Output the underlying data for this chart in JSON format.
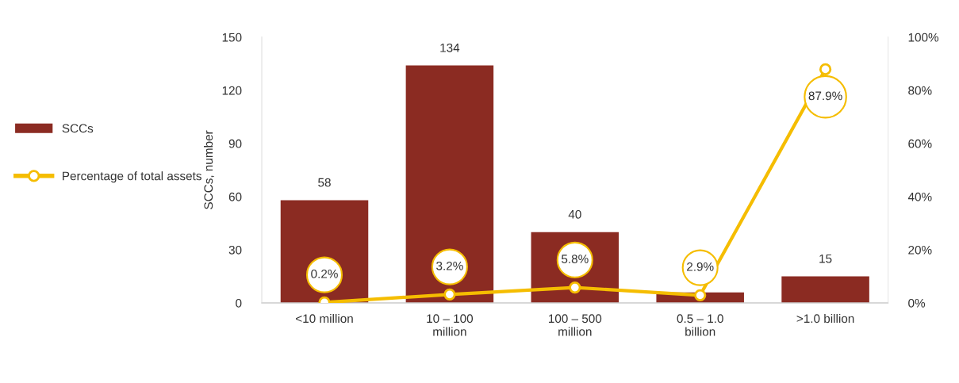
{
  "chart_data": {
    "type": "bar",
    "ylabel": "SCCs, number",
    "categories": [
      "<10 million",
      "10 – 100\nmillion",
      "100 – 500\nmillion",
      "0.5 – 1.0\nbillion",
      ">1.0 billion"
    ],
    "series": [
      {
        "name": "SCCs",
        "color": "#8b2b22",
        "values": [
          58,
          134,
          40,
          6,
          15
        ],
        "value_labels": [
          "58",
          "134",
          "40",
          null,
          "15"
        ]
      },
      {
        "name": "Percentage of total assets",
        "type": "line",
        "axis": "y2",
        "color": "#f5bd00",
        "marker": "circle",
        "values": [
          0.2,
          3.2,
          5.8,
          2.9,
          87.9
        ],
        "value_labels": [
          "0.2%",
          "3.2%",
          "5.8%",
          "2.9%",
          "87.9%"
        ]
      }
    ],
    "ylim": [
      0,
      150
    ],
    "yticks": [
      0,
      30,
      60,
      90,
      120,
      150
    ],
    "y2lim": [
      0,
      100
    ],
    "y2ticks": [
      {
        "value": 0,
        "label": "0%"
      },
      {
        "value": 20,
        "label": "20%"
      },
      {
        "value": 40,
        "label": "40%"
      },
      {
        "value": 60,
        "label": "60%"
      },
      {
        "value": 80,
        "label": "80%"
      },
      {
        "value": 100,
        "label": "100%"
      }
    ],
    "grid": false,
    "legend": "left"
  }
}
